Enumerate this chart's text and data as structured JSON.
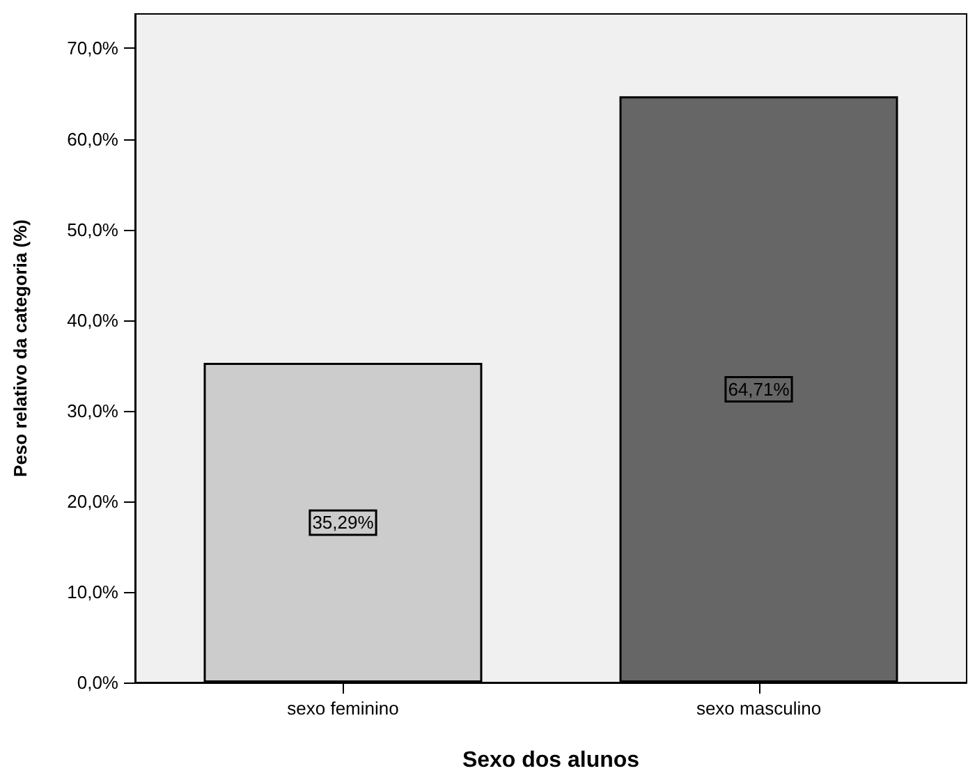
{
  "chart_data": {
    "type": "bar",
    "xlabel": "Sexo dos alunos",
    "ylabel": "Peso relativo da categoria (%)",
    "categories": [
      "sexo feminino",
      "sexo masculino"
    ],
    "values": [
      35.29,
      64.71
    ],
    "colors": [
      "#cccccc",
      "#666666"
    ],
    "value_labels": [
      "35,29%",
      "64,71%"
    ],
    "ylim": [
      0,
      73.8
    ],
    "yticks": [
      {
        "value": 0,
        "label": "0,0%"
      },
      {
        "value": 10,
        "label": "10,0%"
      },
      {
        "value": 20,
        "label": "20,0%"
      },
      {
        "value": 30,
        "label": "30,0%"
      },
      {
        "value": 40,
        "label": "40,0%"
      },
      {
        "value": 50,
        "label": "50,0%"
      },
      {
        "value": 60,
        "label": "60,0%"
      },
      {
        "value": 70,
        "label": "70,0%"
      }
    ],
    "grid": false
  }
}
